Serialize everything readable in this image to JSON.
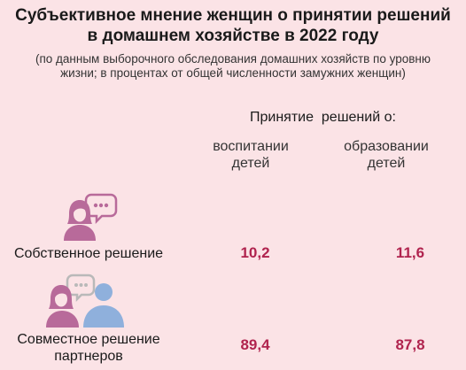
{
  "chart_data": {
    "type": "table",
    "title": [
      "Субъективное мнение женщин о принятии решений",
      "в домашнем хозяйстве в 2022 году"
    ],
    "subtitle": [
      "(по данным выборочного обследования домашних хозяйств по уровню",
      "жизни; в процентах от общей численности замужних женщин)"
    ],
    "header": "Принятие  решений о:",
    "columns": [
      [
        "воспитании",
        "детей"
      ],
      [
        "образовании",
        "детей"
      ]
    ],
    "rows": [
      {
        "label": [
          "Собственное решение"
        ],
        "values": [
          "10,2",
          "11,6"
        ]
      },
      {
        "label": [
          "Совместное решение",
          "партнеров"
        ],
        "values": [
          "89,4",
          "87,8"
        ]
      }
    ]
  },
  "colors": {
    "background": "#fbe3e6",
    "value": "#b0234e",
    "woman": "#b86a9a",
    "man": "#8fb0dc",
    "bubble": "#b86a9a",
    "bubble_gray": "#b9b9b9"
  },
  "icons": [
    "woman-speech-icon",
    "couple-speech-icon"
  ]
}
